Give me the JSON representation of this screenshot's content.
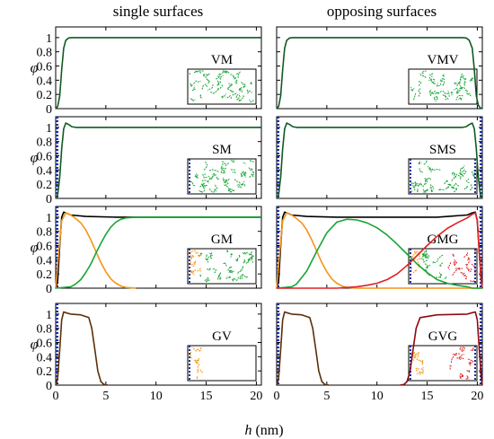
{
  "figure": {
    "column_titles": [
      "single surfaces",
      "opposing surfaces"
    ],
    "ylabel": "φ",
    "xlabel_var": "h",
    "xlabel_unit": " (nm)"
  },
  "colors": {
    "total": "#000000",
    "M": "#17a535",
    "V": "#111111",
    "S": "#1a2fa0",
    "G": "#f39417",
    "GV_total": "#5c2f06",
    "GVG_total": "#8b0a12",
    "red": "#e02020",
    "dark_green": "#0f5a22"
  },
  "chart_data": [
    {
      "type": "line",
      "panel": "VM",
      "label": "VM",
      "xlim": [
        0,
        20.5
      ],
      "ylim": [
        0,
        1.15
      ],
      "xticks": [
        0,
        5,
        10,
        15,
        20
      ],
      "yticks": [
        0,
        0.2,
        0.4,
        0.6,
        0.8,
        1
      ],
      "series": [
        {
          "color": "dark_green",
          "x": [
            0,
            0.2,
            0.4,
            0.6,
            0.8,
            1.0,
            1.3,
            1.6,
            2.0,
            20.5
          ],
          "y": [
            0,
            0.03,
            0.18,
            0.55,
            0.85,
            0.96,
            0.995,
            1.0,
            1.0,
            1.0
          ]
        }
      ]
    },
    {
      "type": "line",
      "panel": "VMV",
      "label": "VMV",
      "xlim": [
        0,
        20.5
      ],
      "ylim": [
        0,
        1.15
      ],
      "xticks": [
        0,
        5,
        10,
        15,
        20
      ],
      "yticks": [
        0,
        0.2,
        0.4,
        0.6,
        0.8,
        1
      ],
      "series": [
        {
          "color": "dark_green",
          "x": [
            0,
            0.2,
            0.4,
            0.6,
            0.8,
            1.0,
            1.3,
            1.6,
            2.0,
            18.5,
            18.9,
            19.2,
            19.5,
            19.7,
            19.9,
            20.1,
            20.3,
            20.5
          ],
          "y": [
            0,
            0.03,
            0.18,
            0.55,
            0.85,
            0.96,
            0.995,
            1.0,
            1.0,
            1.0,
            0.995,
            0.96,
            0.85,
            0.55,
            0.18,
            0.05,
            0.01,
            0
          ]
        }
      ]
    },
    {
      "type": "line",
      "panel": "SM",
      "label": "SM",
      "xlim": [
        0,
        20.5
      ],
      "ylim": [
        0,
        1.15
      ],
      "xticks": [
        0,
        5,
        10,
        15,
        20
      ],
      "yticks": [
        0,
        0.2,
        0.4,
        0.6,
        0.8,
        1
      ],
      "series": [
        {
          "color": "dark_green",
          "x": [
            0,
            0.2,
            0.4,
            0.6,
            0.8,
            1.0,
            1.3,
            1.6,
            2.0,
            3.0,
            20.5
          ],
          "y": [
            0,
            0.05,
            0.3,
            0.7,
            0.98,
            1.06,
            1.04,
            1.01,
            1.0,
            1.0,
            1.0
          ]
        }
      ]
    },
    {
      "type": "line",
      "panel": "SMS",
      "label": "SMS",
      "xlim": [
        0,
        20.5
      ],
      "ylim": [
        0,
        1.15
      ],
      "xticks": [
        0,
        5,
        10,
        15,
        20
      ],
      "yticks": [
        0,
        0.2,
        0.4,
        0.6,
        0.8,
        1
      ],
      "series": [
        {
          "color": "dark_green",
          "x": [
            0,
            0.2,
            0.4,
            0.6,
            0.8,
            1.0,
            1.3,
            1.6,
            2.0,
            18.5,
            18.9,
            19.2,
            19.5,
            19.7,
            19.9,
            20.1,
            20.3,
            20.5
          ],
          "y": [
            0,
            0.05,
            0.3,
            0.7,
            0.98,
            1.06,
            1.04,
            1.01,
            1.0,
            1.0,
            1.01,
            1.04,
            1.06,
            0.98,
            0.7,
            0.3,
            0.05,
            0
          ]
        }
      ]
    },
    {
      "type": "line",
      "panel": "GM",
      "label": "GM",
      "xlim": [
        0,
        20.5
      ],
      "ylim": [
        0,
        1.15
      ],
      "xticks": [
        0,
        5,
        10,
        15,
        20
      ],
      "yticks": [
        0,
        0.2,
        0.4,
        0.6,
        0.8,
        1
      ],
      "series": [
        {
          "color": "total",
          "x": [
            0,
            0.2,
            0.4,
            0.6,
            0.8,
            1.0,
            1.5,
            3,
            6,
            10,
            20.5
          ],
          "y": [
            0,
            0.1,
            0.6,
            1.0,
            1.07,
            1.06,
            1.03,
            1.01,
            1.0,
            1.0,
            1.0
          ]
        },
        {
          "color": "G",
          "x": [
            0,
            0.3,
            0.6,
            1.0,
            1.5,
            2,
            2.5,
            3,
            3.5,
            4,
            4.5,
            5,
            5.5,
            6,
            6.5,
            7,
            8
          ],
          "y": [
            0,
            0.5,
            0.95,
            1.06,
            1.03,
            0.98,
            0.92,
            0.82,
            0.68,
            0.52,
            0.36,
            0.23,
            0.13,
            0.07,
            0.03,
            0.01,
            0
          ]
        },
        {
          "color": "M",
          "x": [
            0,
            1.5,
            2,
            2.5,
            3,
            3.5,
            4,
            4.5,
            5,
            5.5,
            6,
            6.5,
            7,
            8,
            9,
            10,
            20.5
          ],
          "y": [
            0,
            0.02,
            0.06,
            0.12,
            0.22,
            0.34,
            0.49,
            0.63,
            0.76,
            0.86,
            0.93,
            0.97,
            0.99,
            1.0,
            1.0,
            1.0,
            1.0
          ]
        }
      ]
    },
    {
      "type": "line",
      "panel": "GMG",
      "label": "GMG",
      "xlim": [
        0,
        20.5
      ],
      "ylim": [
        0,
        1.15
      ],
      "xticks": [
        0,
        5,
        10,
        15,
        20
      ],
      "yticks": [
        0,
        0.2,
        0.4,
        0.6,
        0.8,
        1
      ],
      "series": [
        {
          "color": "total",
          "x": [
            0,
            0.2,
            0.4,
            0.6,
            0.8,
            1.0,
            1.5,
            3,
            6,
            10,
            16,
            19,
            19.5,
            19.8,
            20.0,
            20.2,
            20.4,
            20.5
          ],
          "y": [
            0,
            0.1,
            0.6,
            1.0,
            1.07,
            1.06,
            1.03,
            1.01,
            1.0,
            1.0,
            1.0,
            1.03,
            1.06,
            1.07,
            0.95,
            0.5,
            0.1,
            0
          ]
        },
        {
          "color": "G",
          "x": [
            0,
            0.3,
            0.6,
            1.0,
            1.5,
            2,
            2.5,
            3,
            3.5,
            4,
            4.5,
            5,
            5.5,
            6,
            6.5,
            7,
            8,
            20.5
          ],
          "y": [
            0,
            0.5,
            0.95,
            1.06,
            1.03,
            0.98,
            0.92,
            0.82,
            0.68,
            0.52,
            0.36,
            0.23,
            0.13,
            0.07,
            0.03,
            0.01,
            0,
            0
          ]
        },
        {
          "color": "M",
          "x": [
            0,
            1.5,
            2,
            3,
            4,
            5,
            6,
            7,
            8,
            9,
            10,
            11,
            12,
            13,
            14,
            15,
            16,
            17,
            18,
            19,
            19.5,
            20.5
          ],
          "y": [
            0,
            0.02,
            0.06,
            0.24,
            0.52,
            0.78,
            0.93,
            0.97,
            0.96,
            0.92,
            0.85,
            0.75,
            0.62,
            0.48,
            0.34,
            0.22,
            0.12,
            0.07,
            0.04,
            0.02,
            0.0,
            0
          ]
        },
        {
          "color": "red",
          "x": [
            0,
            6,
            7,
            8,
            9,
            10,
            11,
            12,
            13,
            14,
            15,
            16,
            17,
            18,
            19,
            19.5,
            19.8,
            20.0,
            20.2,
            20.4,
            20.5
          ],
          "y": [
            0,
            0,
            0.01,
            0.02,
            0.04,
            0.07,
            0.12,
            0.2,
            0.32,
            0.46,
            0.6,
            0.73,
            0.84,
            0.92,
            0.99,
            1.04,
            1.06,
            0.95,
            0.5,
            0.1,
            0
          ]
        }
      ]
    },
    {
      "type": "line",
      "panel": "GV",
      "label": "GV",
      "xlim": [
        0,
        20.5
      ],
      "ylim": [
        0,
        1.15
      ],
      "xticks": [
        0,
        5,
        10,
        15,
        20
      ],
      "yticks": [
        0,
        0.2,
        0.4,
        0.6,
        0.8,
        1
      ],
      "series": [
        {
          "color": "GV_total",
          "x": [
            0,
            0.2,
            0.4,
            0.6,
            0.8,
            1.0,
            1.5,
            2.5,
            3.3,
            3.6,
            3.9,
            4.2,
            4.5,
            4.8,
            5.2
          ],
          "y": [
            0,
            0.1,
            0.5,
            0.92,
            1.03,
            1.02,
            1.0,
            0.99,
            0.95,
            0.8,
            0.5,
            0.2,
            0.05,
            0.01,
            0
          ]
        }
      ]
    },
    {
      "type": "line",
      "panel": "GVG",
      "label": "GVG",
      "xlim": [
        0,
        20.5
      ],
      "ylim": [
        0,
        1.15
      ],
      "xticks": [
        0,
        5,
        10,
        15,
        20
      ],
      "yticks": [
        0,
        0.2,
        0.4,
        0.6,
        0.8,
        1
      ],
      "series": [
        {
          "color": "GV_total",
          "x": [
            0,
            0.2,
            0.4,
            0.6,
            0.8,
            1.0,
            1.5,
            2.5,
            3.3,
            3.6,
            3.9,
            4.2,
            4.5,
            4.8,
            5.2
          ],
          "y": [
            0,
            0.1,
            0.5,
            0.92,
            1.03,
            1.02,
            1.0,
            0.99,
            0.95,
            0.8,
            0.5,
            0.2,
            0.05,
            0.01,
            0
          ]
        },
        {
          "color": "GVG_total",
          "x": [
            12.3,
            12.7,
            13.0,
            13.3,
            13.6,
            13.9,
            14.3,
            16,
            19,
            19.5,
            19.8,
            20.0,
            20.2,
            20.4,
            20.5
          ],
          "y": [
            0,
            0.01,
            0.05,
            0.2,
            0.5,
            0.8,
            0.95,
            0.99,
            1.0,
            1.02,
            1.03,
            0.92,
            0.5,
            0.1,
            0
          ]
        }
      ]
    }
  ]
}
